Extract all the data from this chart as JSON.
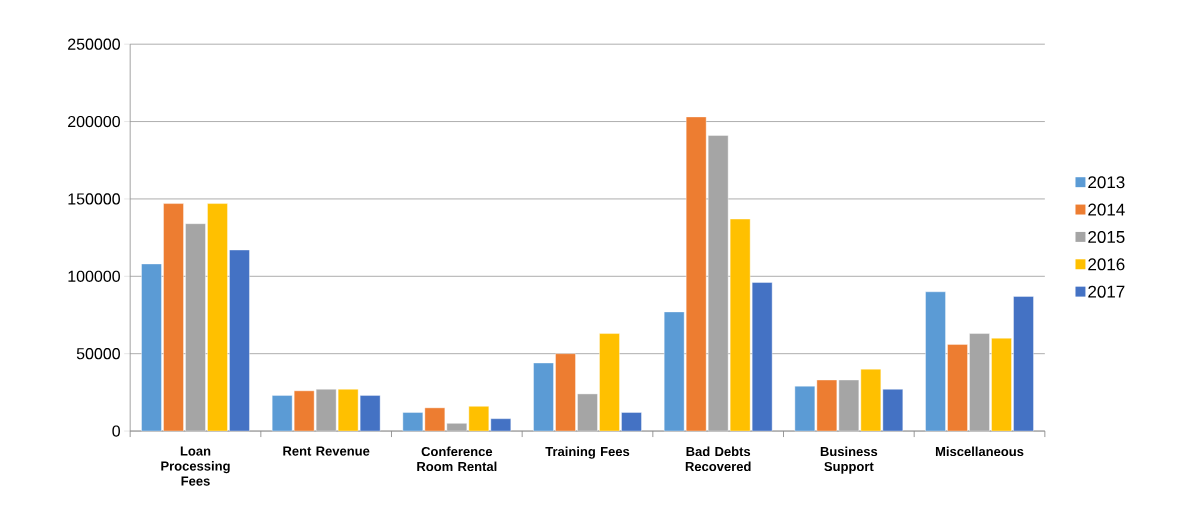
{
  "chart_data": {
    "type": "bar",
    "categories": [
      "Loan Processing Fees",
      "Rent Revenue",
      "Conference Room Rental",
      "Training Fees",
      "Bad Debts Recovered",
      "Business Support",
      "Miscellaneous"
    ],
    "series": [
      {
        "name": "2013",
        "color": "#5b9bd5",
        "values": [
          108000,
          23000,
          12000,
          44000,
          77000,
          29000,
          90000
        ]
      },
      {
        "name": "2014",
        "color": "#ed7d31",
        "values": [
          147000,
          26000,
          15000,
          50000,
          203000,
          33000,
          56000
        ]
      },
      {
        "name": "2015",
        "color": "#a5a5a5",
        "values": [
          134000,
          27000,
          5000,
          24000,
          191000,
          33000,
          63000
        ]
      },
      {
        "name": "2016",
        "color": "#ffc000",
        "values": [
          147000,
          27000,
          16000,
          63000,
          137000,
          40000,
          60000
        ]
      },
      {
        "name": "2017",
        "color": "#4472c4",
        "values": [
          117000,
          23000,
          8000,
          12000,
          96000,
          27000,
          87000
        ]
      }
    ],
    "ylim": [
      0,
      250000
    ],
    "yticks": [
      0,
      50000,
      100000,
      150000,
      200000,
      250000
    ],
    "grid": "y",
    "legend": "right"
  }
}
